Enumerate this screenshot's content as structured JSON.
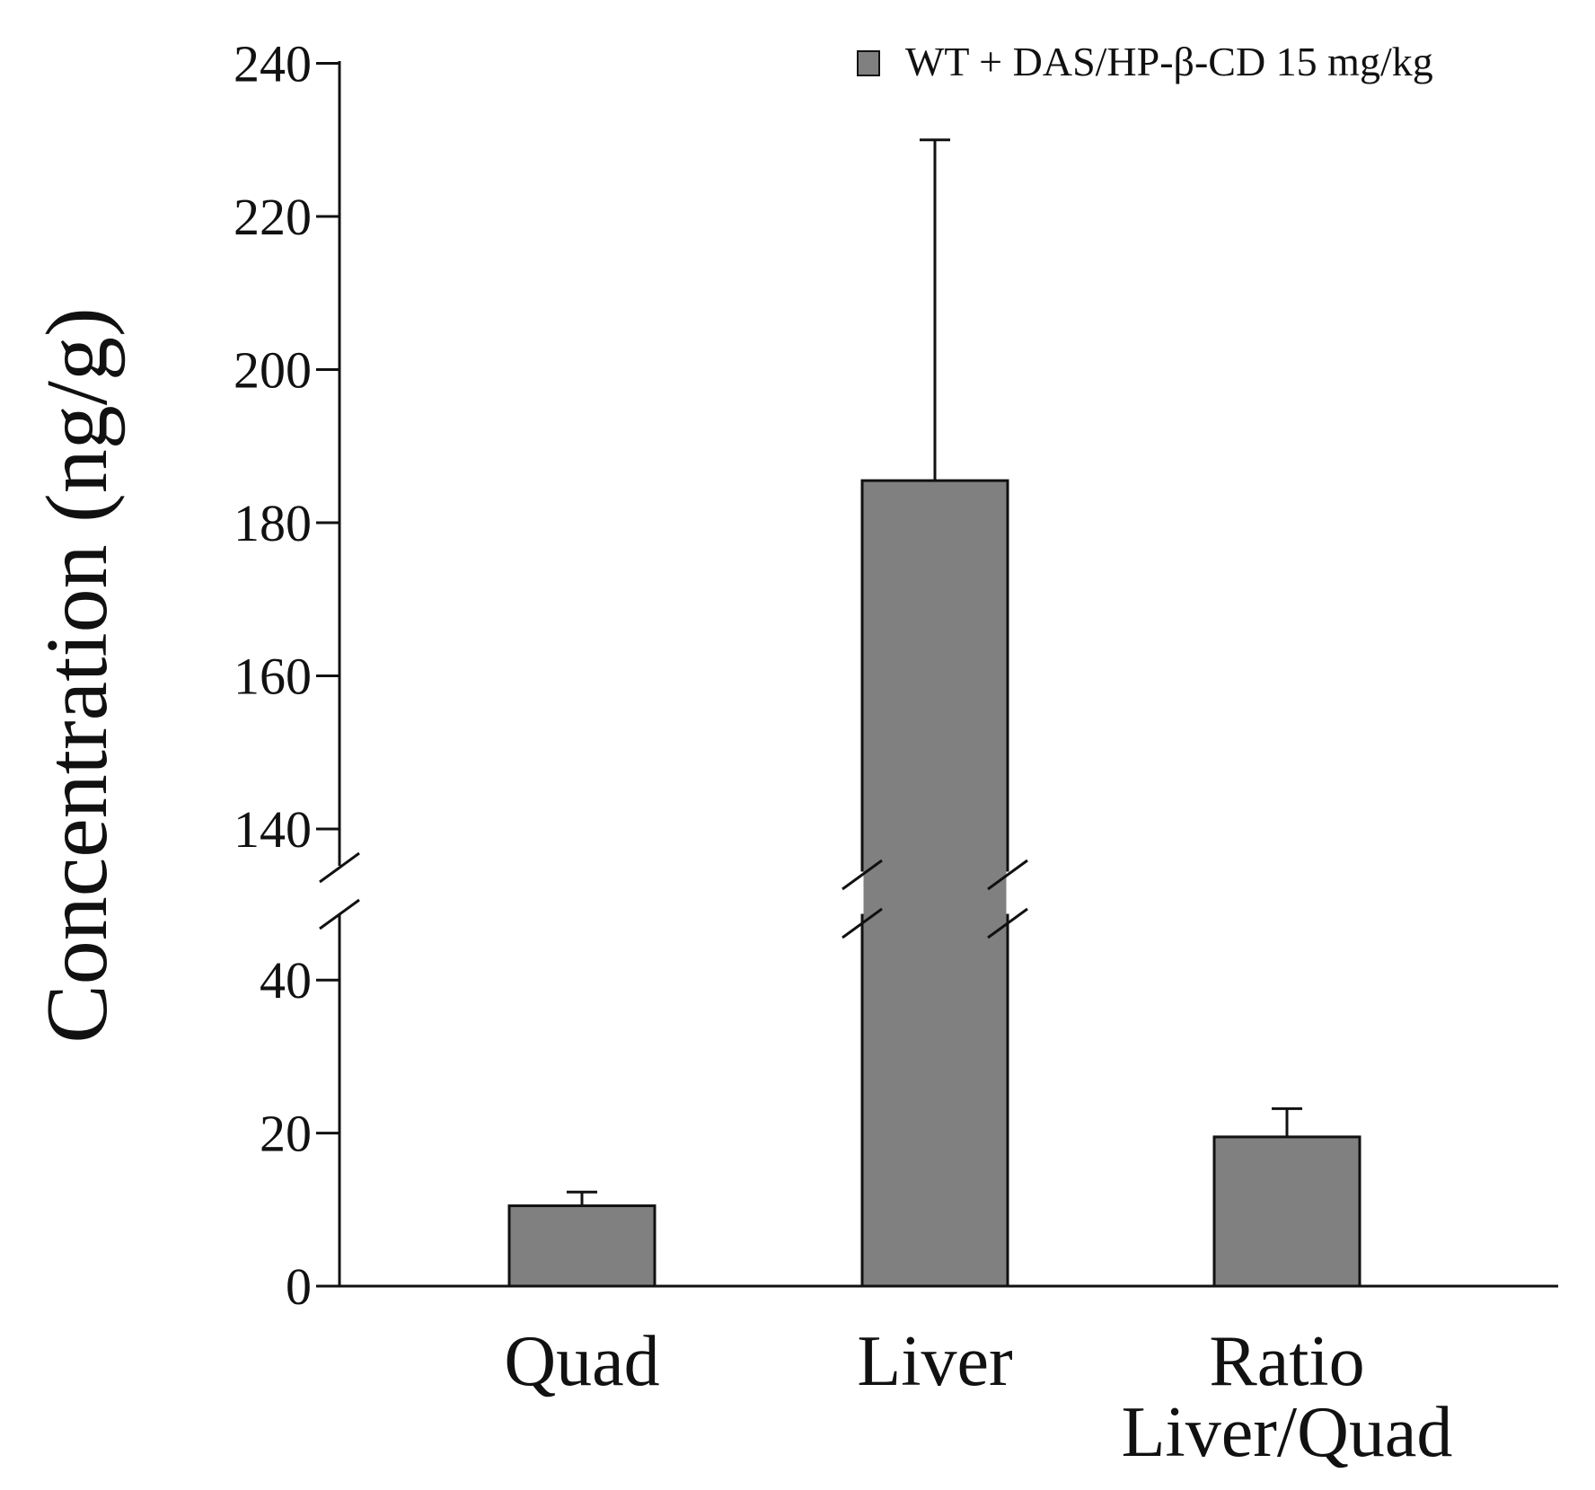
{
  "chart_data": {
    "type": "bar",
    "title": "",
    "xlabel": "",
    "ylabel": "Concentration (ng/g)",
    "categories": [
      {
        "id": "quad",
        "lines": [
          "Quad"
        ]
      },
      {
        "id": "liver",
        "lines": [
          "Liver"
        ]
      },
      {
        "id": "ratio",
        "lines": [
          "Ratio",
          "Liver/Quad"
        ]
      }
    ],
    "series": [
      {
        "name": "WT + DAS/HP-β-CD 15 mg/kg",
        "color": "#808080",
        "values": [
          10.5,
          185.5,
          19.5
        ],
        "error_upper": [
          12.3,
          230.0,
          23.2
        ]
      }
    ],
    "axis_break": {
      "lower_max": 50,
      "upper_min": 137
    },
    "lower_ticks": [
      0,
      20,
      40
    ],
    "upper_ticks": [
      140,
      160,
      180,
      200,
      220,
      240
    ],
    "ylim": [
      0,
      240
    ],
    "legend_position": "top-right",
    "grid": false
  }
}
